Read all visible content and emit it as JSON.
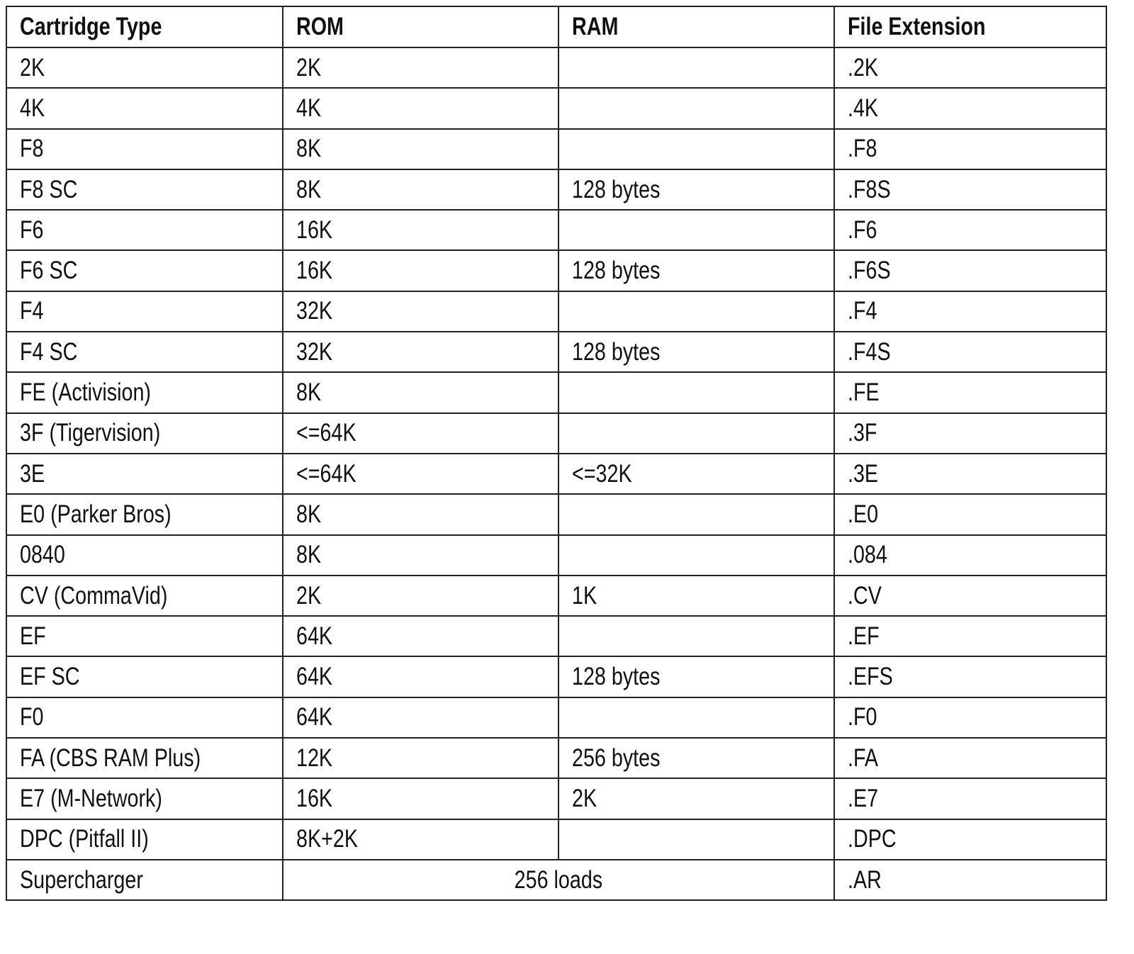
{
  "table": {
    "header": [
      "Cartridge Type",
      "ROM",
      "RAM",
      "File Extension"
    ],
    "rows": [
      {
        "type": "2K",
        "rom": "2K",
        "ext": ".2K"
      },
      {
        "type": "4K",
        "rom": "4K",
        "ext": ".4K"
      },
      {
        "type": "F8",
        "rom": "8K",
        "ext": ".F8"
      },
      {
        "type": "F8 SC",
        "rom": "8K",
        "ram": "128 bytes",
        "ext": ".F8S"
      },
      {
        "type": "F6",
        "rom": "16K",
        "ext": ".F6"
      },
      {
        "type": "F6 SC",
        "rom": "16K",
        "ram": "128 bytes",
        "ext": ".F6S"
      },
      {
        "type": "F4",
        "rom": "32K",
        "ext": ".F4"
      },
      {
        "type": "F4 SC",
        "rom": "32K",
        "ram": "128 bytes",
        "ext": ".F4S"
      },
      {
        "type": "FE (Activision)",
        "rom": "8K",
        "ext": ".FE"
      },
      {
        "type": "3F (Tigervision)",
        "rom": "<=64K",
        "ext": ".3F"
      },
      {
        "type": "3E",
        "rom": "<=64K",
        "ram": "<=32K",
        "ext": ".3E"
      },
      {
        "type": "E0 (Parker Bros)",
        "rom": "8K",
        "ext": ".E0"
      },
      {
        "type": "0840",
        "rom": "8K",
        "ext": ".084"
      },
      {
        "type": "CV (CommaVid)",
        "rom": "2K",
        "ram": "1K",
        "ext": ".CV"
      },
      {
        "type": "EF",
        "rom": "64K",
        "ext": ".EF"
      },
      {
        "type": "EF SC",
        "rom": "64K",
        "ram": "128 bytes",
        "ext": ".EFS"
      },
      {
        "type": "F0",
        "rom": "64K",
        "ext": ".F0"
      },
      {
        "type": "FA (CBS RAM Plus)",
        "rom": "12K",
        "ram": "256 bytes",
        "ext": ".FA"
      },
      {
        "type": "E7 (M-Network)",
        "rom": "16K",
        "ram": "2K",
        "ext": ".E7"
      },
      {
        "type": "DPC (Pitfall II)",
        "rom": "8K+2K",
        "ext": ".DPC"
      },
      {
        "type": "Supercharger",
        "rom_and_ram": "256 loads",
        "ext": ".AR"
      }
    ]
  }
}
